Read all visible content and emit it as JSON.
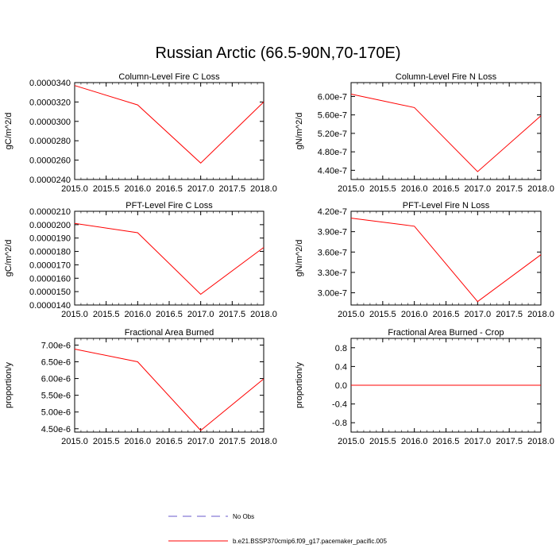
{
  "title": "Russian Arctic (66.5-90N,70-170E)",
  "colors": {
    "series": "#ff0000",
    "legend_obs": "#6a5acd",
    "axis": "#000000"
  },
  "legend": {
    "obs_label": "No Obs",
    "model_label": "b.e21.BSSP370cmip6.f09_g17.pacemaker_pacific.005"
  },
  "chart_data": [
    {
      "type": "line",
      "title": "Column-Level Fire C Loss",
      "ylabel": "gC/m^2/d",
      "xlim": [
        2015.0,
        2018.0
      ],
      "ylim": [
        2.4e-05,
        3.4e-05
      ],
      "xticks": [
        "2015.0",
        "2015.5",
        "2016.0",
        "2016.5",
        "2017.0",
        "2017.5",
        "2018.0"
      ],
      "yticks": [
        "0.0000240",
        "0.0000260",
        "0.0000280",
        "0.0000300",
        "0.0000320",
        "0.0000340"
      ],
      "yticks_values": [
        2.4e-05,
        2.6e-05,
        2.8e-05,
        3e-05,
        3.2e-05,
        3.4e-05
      ],
      "series": [
        {
          "x": [
            2015,
            2016,
            2017,
            2018
          ],
          "values": [
            3.37e-05,
            3.17e-05,
            2.57e-05,
            3.2e-05
          ]
        }
      ]
    },
    {
      "type": "line",
      "title": "Column-Level Fire N Loss",
      "ylabel": "gN/m^2/d",
      "xlim": [
        2015.0,
        2018.0
      ],
      "ylim": [
        4.2e-07,
        6.3e-07
      ],
      "xticks": [
        "2015.0",
        "2015.5",
        "2016.0",
        "2016.5",
        "2017.0",
        "2017.5",
        "2018.0"
      ],
      "yticks": [
        "4.40e-7",
        "4.80e-7",
        "5.20e-7",
        "5.60e-7",
        "6.00e-7"
      ],
      "yticks_values": [
        4.4e-07,
        4.8e-07,
        5.2e-07,
        5.6e-07,
        6e-07
      ],
      "series": [
        {
          "x": [
            2015,
            2016,
            2017,
            2018
          ],
          "values": [
            6.05e-07,
            5.76e-07,
            4.37e-07,
            5.58e-07
          ]
        }
      ]
    },
    {
      "type": "line",
      "title": "PFT-Level Fire C Loss",
      "ylabel": "gC/m^2/d",
      "xlim": [
        2015.0,
        2018.0
      ],
      "ylim": [
        1.4e-05,
        2.1e-05
      ],
      "xticks": [
        "2015.0",
        "2015.5",
        "2016.0",
        "2016.5",
        "2017.0",
        "2017.5",
        "2018.0"
      ],
      "yticks": [
        "0.0000140",
        "0.0000150",
        "0.0000160",
        "0.0000170",
        "0.0000180",
        "0.0000190",
        "0.0000200",
        "0.0000210"
      ],
      "yticks_values": [
        1.4e-05,
        1.5e-05,
        1.6e-05,
        1.7e-05,
        1.8e-05,
        1.9e-05,
        2e-05,
        2.1e-05
      ],
      "series": [
        {
          "x": [
            2015,
            2016,
            2017,
            2018
          ],
          "values": [
            2.01e-05,
            1.94e-05,
            1.48e-05,
            1.83e-05
          ]
        }
      ]
    },
    {
      "type": "line",
      "title": "PFT-Level Fire N Loss",
      "ylabel": "gN/m^2/d",
      "xlim": [
        2015.0,
        2018.0
      ],
      "ylim": [
        2.82e-07,
        4.2e-07
      ],
      "xticks": [
        "2015.0",
        "2015.5",
        "2016.0",
        "2016.5",
        "2017.0",
        "2017.5",
        "2018.0"
      ],
      "yticks": [
        "3.00e-7",
        "3.30e-7",
        "3.60e-7",
        "3.90e-7",
        "4.20e-7"
      ],
      "yticks_values": [
        3e-07,
        3.3e-07,
        3.6e-07,
        3.9e-07,
        4.2e-07
      ],
      "series": [
        {
          "x": [
            2015,
            2016,
            2017,
            2018
          ],
          "values": [
            4.1e-07,
            3.98e-07,
            2.87e-07,
            3.56e-07
          ]
        }
      ]
    },
    {
      "type": "line",
      "title": "Fractional Area Burned",
      "ylabel": "proportion/y",
      "xlim": [
        2015.0,
        2018.0
      ],
      "ylim": [
        4.4e-06,
        7.2e-06
      ],
      "xticks": [
        "2015.0",
        "2015.5",
        "2016.0",
        "2016.5",
        "2017.0",
        "2017.5",
        "2018.0"
      ],
      "yticks": [
        "4.50e-6",
        "5.00e-6",
        "5.50e-6",
        "6.00e-6",
        "6.50e-6",
        "7.00e-6"
      ],
      "yticks_values": [
        4.5e-06,
        5e-06,
        5.5e-06,
        6e-06,
        6.5e-06,
        7e-06
      ],
      "series": [
        {
          "x": [
            2015,
            2016,
            2017,
            2018
          ],
          "values": [
            6.88e-06,
            6.5e-06,
            4.45e-06,
            5.99e-06
          ]
        }
      ]
    },
    {
      "type": "line",
      "title": "Fractional Area Burned - Crop",
      "ylabel": "proportion/y",
      "xlim": [
        2015.0,
        2018.0
      ],
      "ylim": [
        -1.0,
        1.0
      ],
      "xticks": [
        "2015.0",
        "2015.5",
        "2016.0",
        "2016.5",
        "2017.0",
        "2017.5",
        "2018.0"
      ],
      "yticks": [
        "-0.8",
        "-0.4",
        "0.0",
        "0.4",
        "0.8"
      ],
      "yticks_values": [
        -0.8,
        -0.4,
        0.0,
        0.4,
        0.8
      ],
      "series": [
        {
          "x": [
            2015,
            2016,
            2017,
            2018
          ],
          "values": [
            0,
            0,
            0,
            0
          ]
        }
      ]
    }
  ]
}
